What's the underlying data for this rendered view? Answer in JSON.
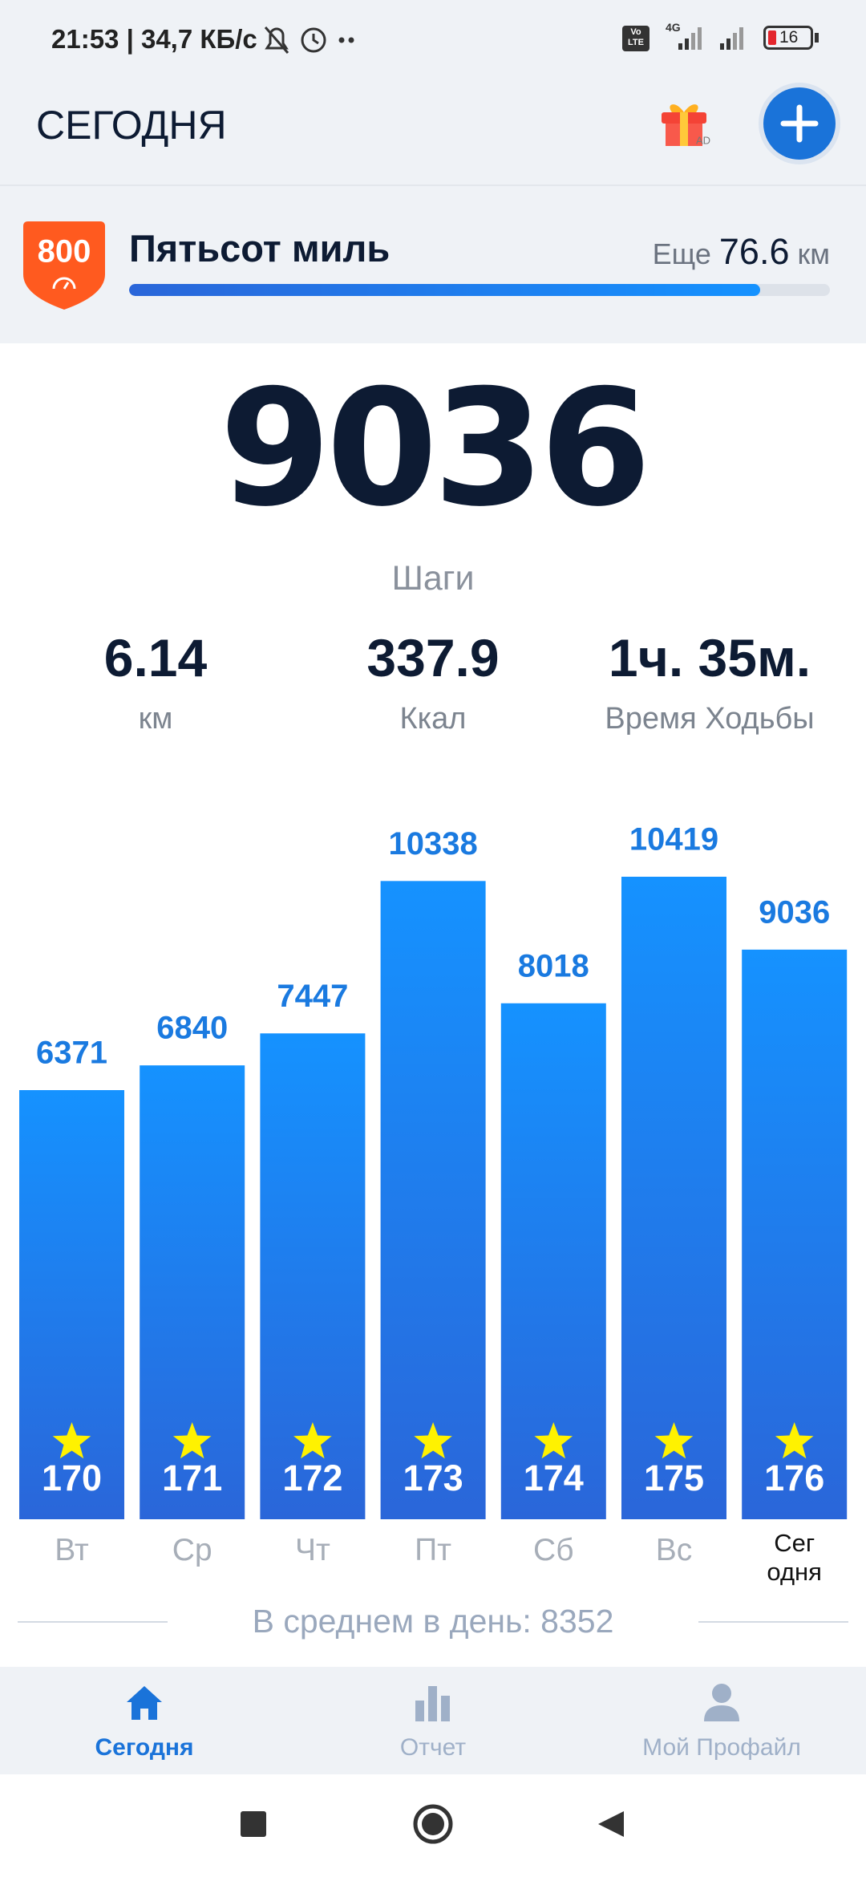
{
  "status_bar": {
    "time": "21:53 | 34,7 КБ/с",
    "volte": "Vo\nLTE",
    "network": "4G",
    "battery": "16"
  },
  "header": {
    "title": "СЕГОДНЯ",
    "gift_label": "AD"
  },
  "achievement": {
    "badge": "800",
    "title": "Пятьсот миль",
    "remaining_prefix": "Еще",
    "remaining_value": 76.6,
    "remaining_unit": "км",
    "progress_percent": 90
  },
  "summary": {
    "steps": 9036,
    "steps_label": "Шаги",
    "stats": [
      {
        "value": 6.14,
        "label": "км"
      },
      {
        "value": 337.9,
        "label": "Ккал"
      },
      {
        "value": "1ч. 35м.",
        "label": "Время Ходьбы"
      }
    ]
  },
  "chart_data": {
    "type": "bar",
    "categories": [
      "Вт",
      "Ср",
      "Чт",
      "Пт",
      "Сб",
      "Вс",
      "Сег\nодня"
    ],
    "values": [
      6371,
      6840,
      7447,
      10338,
      8018,
      10419,
      9036
    ],
    "badges": [
      170,
      171,
      172,
      173,
      174,
      175,
      176
    ],
    "color": "#1592ff",
    "gradient_end": "#2a66d9",
    "label_color": "#1a7ae0"
  },
  "average": "В среднем в день: 8352",
  "nav": [
    {
      "label": "Сегодня",
      "active": true
    },
    {
      "label": "Отчет",
      "active": false
    },
    {
      "label": "Мой Профайл",
      "active": false
    }
  ]
}
